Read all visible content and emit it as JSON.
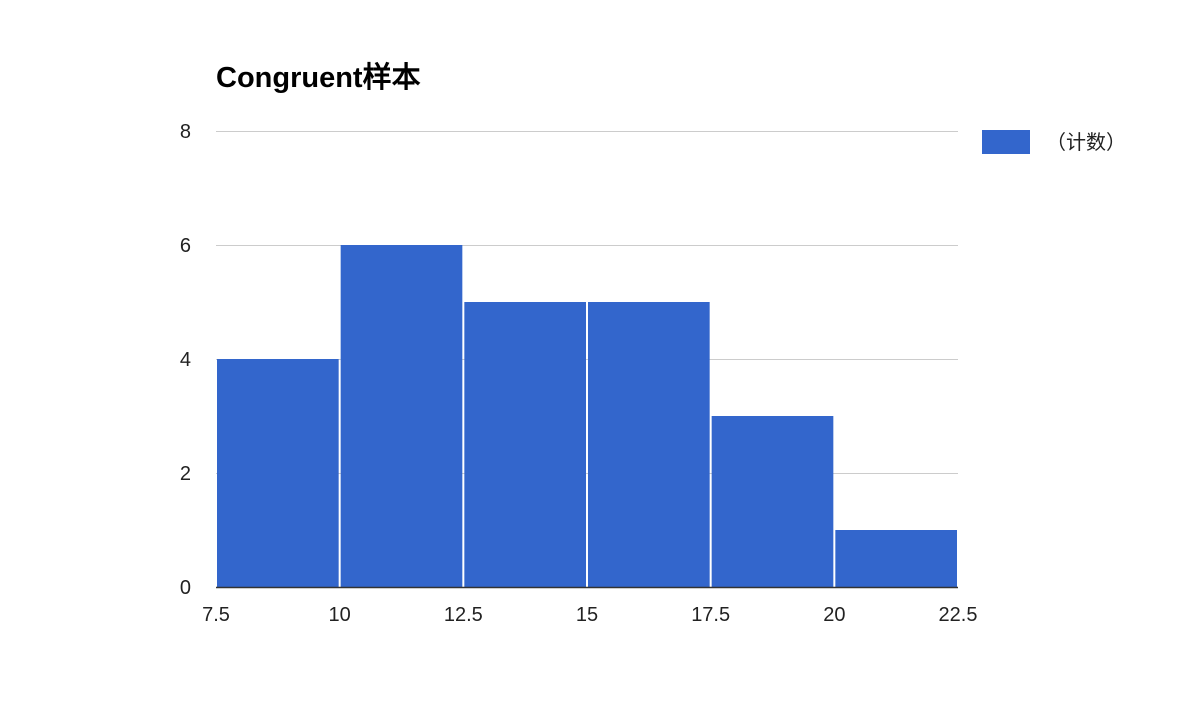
{
  "chart_data": {
    "type": "bar",
    "title": "Congruent样本",
    "xlabel": "",
    "ylabel": "",
    "bins": [
      {
        "start": 7.5,
        "end": 10,
        "count": 4
      },
      {
        "start": 10,
        "end": 12.5,
        "count": 6
      },
      {
        "start": 12.5,
        "end": 15,
        "count": 5
      },
      {
        "start": 15,
        "end": 17.5,
        "count": 5
      },
      {
        "start": 17.5,
        "end": 20,
        "count": 3
      },
      {
        "start": 20,
        "end": 22.5,
        "count": 1
      }
    ],
    "xlim": [
      7.5,
      22.5
    ],
    "ylim": [
      0,
      8
    ],
    "x_ticks": [
      "7.5",
      "10",
      "12.5",
      "15",
      "17.5",
      "20",
      "22.5"
    ],
    "y_ticks": [
      "0",
      "2",
      "4",
      "6",
      "8"
    ],
    "series": [
      {
        "name": "（计数）",
        "color": "#3366cc"
      }
    ],
    "legend": {
      "position": "right"
    },
    "grid": true,
    "colors": {
      "bar": "#3366cc",
      "grid": "#cccccc",
      "axis": "#333333",
      "text": "#222222"
    }
  }
}
